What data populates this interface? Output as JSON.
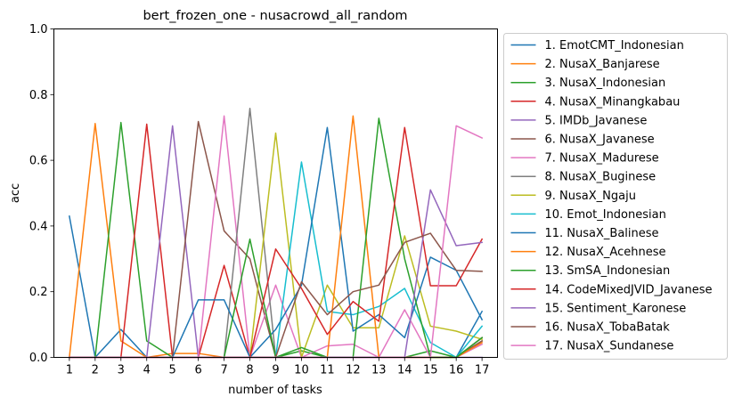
{
  "chart_data": {
    "type": "line",
    "title": "bert_frozen_one - nusacrowd_all_random",
    "xlabel": "number of tasks",
    "ylabel": "acc",
    "x": [
      1,
      2,
      3,
      4,
      5,
      6,
      7,
      8,
      9,
      10,
      11,
      12,
      13,
      14,
      15,
      16,
      17
    ],
    "xlim": [
      0.4,
      17.6
    ],
    "ylim": [
      0,
      1
    ],
    "yticks": [
      0.0,
      0.2,
      0.4,
      0.6,
      0.8,
      1.0
    ],
    "ytick_labels": [
      "0.0",
      "0.2",
      "0.4",
      "0.6",
      "0.8",
      "1.0"
    ],
    "grid": false,
    "legend_position": "outside-right",
    "series": [
      {
        "name": "1. EmotCMT_Indonesian",
        "color": "#1f77b4",
        "values": [
          0.43,
          0.0,
          0.085,
          0.0,
          0.0,
          0.0,
          0.0,
          0.0,
          0.0,
          0.0,
          0.0,
          0.0,
          0.0,
          0.0,
          0.0,
          0.0,
          0.14
        ]
      },
      {
        "name": "2. NusaX_Banjarese",
        "color": "#ff7f0e",
        "values": [
          0.0,
          0.712,
          0.05,
          0.0,
          0.012,
          0.012,
          0.0,
          0.0,
          0.0,
          0.0,
          0.0,
          0.0,
          0.0,
          0.0,
          0.0,
          0.0,
          0.05
        ]
      },
      {
        "name": "3. NusaX_Indonesian",
        "color": "#2ca02c",
        "values": [
          0.0,
          0.0,
          0.715,
          0.05,
          0.0,
          0.0,
          0.0,
          0.0,
          0.0,
          0.02,
          0.0,
          0.0,
          0.0,
          0.0,
          0.02,
          0.0,
          0.05
        ]
      },
      {
        "name": "4. NusaX_Minangkabau",
        "color": "#d62728",
        "values": [
          0.0,
          0.0,
          0.0,
          0.71,
          0.0,
          0.0,
          0.28,
          0.0,
          0.0,
          0.0,
          0.0,
          0.0,
          0.0,
          0.0,
          0.0,
          0.0,
          0.06
        ]
      },
      {
        "name": "5. IMDb_Javanese",
        "color": "#9467bd",
        "values": [
          0.0,
          0.0,
          0.0,
          0.0,
          0.705,
          0.0,
          0.0,
          0.0,
          0.0,
          0.0,
          0.0,
          0.0,
          0.0,
          0.0,
          0.0,
          0.0,
          0.0
        ]
      },
      {
        "name": "6. NusaX_Javanese",
        "color": "#8c564b",
        "values": [
          0.0,
          0.0,
          0.0,
          0.0,
          0.0,
          0.718,
          0.385,
          0.3,
          0.0,
          0.0,
          0.0,
          0.0,
          0.0,
          0.0,
          0.0,
          0.0,
          0.05
        ]
      },
      {
        "name": "7. NusaX_Madurese",
        "color": "#e377c2",
        "values": [
          0.0,
          0.0,
          0.0,
          0.0,
          0.0,
          0.0,
          0.735,
          0.0,
          0.22,
          0.0,
          0.035,
          0.04,
          0.0,
          0.145,
          0.0,
          0.0,
          0.04
        ]
      },
      {
        "name": "8. NusaX_Buginese",
        "color": "#7f7f7f",
        "values": [
          0.0,
          0.0,
          0.0,
          0.0,
          0.0,
          0.0,
          0.0,
          0.758,
          0.0,
          0.0,
          0.0,
          0.0,
          0.0,
          0.0,
          0.0,
          0.0,
          0.06
        ]
      },
      {
        "name": "9. NusaX_Ngaju",
        "color": "#bcbd22",
        "values": [
          0.0,
          0.0,
          0.0,
          0.0,
          0.0,
          0.0,
          0.0,
          0.0,
          0.683,
          0.0,
          0.22,
          0.09,
          0.09,
          0.37,
          0.095,
          0.08,
          0.055
        ]
      },
      {
        "name": "10. Emot_Indonesian",
        "color": "#17becf",
        "values": [
          0.0,
          0.0,
          0.0,
          0.0,
          0.0,
          0.0,
          0.0,
          0.0,
          0.0,
          0.595,
          0.14,
          0.13,
          0.155,
          0.21,
          0.045,
          0.0,
          0.095
        ]
      },
      {
        "name": "11. NusaX_Balinese",
        "color": "#1f77b4",
        "values": [
          0.0,
          0.0,
          0.0,
          0.0,
          0.0,
          0.175,
          0.175,
          0.0,
          0.085,
          0.22,
          0.7,
          0.08,
          0.13,
          0.06,
          0.305,
          0.265,
          0.115
        ]
      },
      {
        "name": "12. NusaX_Acehnese",
        "color": "#ff7f0e",
        "values": [
          0.0,
          0.0,
          0.0,
          0.0,
          0.0,
          0.0,
          0.0,
          0.0,
          0.0,
          0.0,
          0.0,
          0.735,
          0.0,
          0.0,
          0.0,
          0.0,
          0.045
        ]
      },
      {
        "name": "13. SmSA_Indonesian",
        "color": "#2ca02c",
        "values": [
          0.0,
          0.0,
          0.0,
          0.0,
          0.0,
          0.0,
          0.0,
          0.36,
          0.0,
          0.03,
          0.0,
          0.0,
          0.728,
          0.3,
          0.0,
          0.0,
          0.06
        ]
      },
      {
        "name": "14. CodeMixedJVID_Javanese",
        "color": "#d62728",
        "values": [
          0.0,
          0.0,
          0.0,
          0.0,
          0.0,
          0.0,
          0.0,
          0.0,
          0.33,
          0.21,
          0.07,
          0.17,
          0.11,
          0.7,
          0.218,
          0.218,
          0.36
        ]
      },
      {
        "name": "15. Sentiment_Karonese",
        "color": "#9467bd",
        "values": [
          0.0,
          0.0,
          0.0,
          0.0,
          0.0,
          0.0,
          0.0,
          0.0,
          0.0,
          0.0,
          0.0,
          0.0,
          0.0,
          0.0,
          0.51,
          0.34,
          0.35
        ]
      },
      {
        "name": "16. NusaX_TobaBatak",
        "color": "#8c564b",
        "values": [
          0.0,
          0.0,
          0.0,
          0.0,
          0.0,
          0.0,
          0.0,
          0.0,
          0.0,
          0.23,
          0.13,
          0.2,
          0.22,
          0.35,
          0.378,
          0.265,
          0.262
        ]
      },
      {
        "name": "17. NusaX_Sundanese",
        "color": "#e377c2",
        "values": [
          0.0,
          0.0,
          0.0,
          0.0,
          0.0,
          0.0,
          0.0,
          0.0,
          0.0,
          0.0,
          0.0,
          0.0,
          0.0,
          0.0,
          0.0,
          0.705,
          0.668
        ]
      }
    ]
  }
}
